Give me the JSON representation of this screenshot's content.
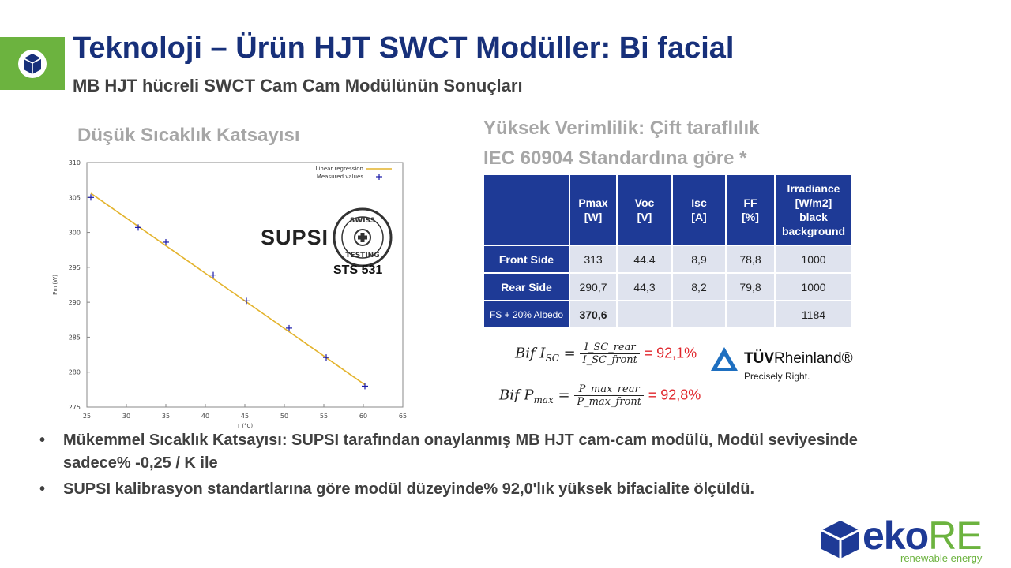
{
  "header": {
    "title": "Teknoloji – Ürün HJT SWCT Modüller: Bi facial",
    "subtitle": "MB HJT hücreli SWCT Cam Cam Modülünün Sonuçları"
  },
  "left": {
    "heading": "Düşük Sıcaklık Katsayısı",
    "supsi_logo": "SUPSI",
    "seal_text": [
      "SWISS",
      "TESTING"
    ],
    "seal_label": "STS 531"
  },
  "chart_data": {
    "type": "scatter",
    "xlabel": "T (°C)",
    "ylabel": "Pm (W)",
    "xlim": [
      25,
      65
    ],
    "ylim": [
      275,
      310
    ],
    "xticks": [
      "25",
      "30",
      "35",
      "40",
      "45",
      "50",
      "55",
      "60",
      "65"
    ],
    "yticks": [
      "275",
      "280",
      "285",
      "290",
      "295",
      "300",
      "305",
      "310"
    ],
    "legend_position": "top-right",
    "series": [
      {
        "name": "Measured values",
        "type": "scatter",
        "color": "#1a1aa8",
        "x": [
          25.5,
          31.5,
          35.0,
          41.0,
          45.2,
          50.6,
          55.3,
          60.2
        ],
        "y": [
          305.0,
          300.7,
          298.6,
          293.9,
          290.2,
          286.3,
          282.1,
          278.0
        ]
      },
      {
        "name": "Linear regression",
        "type": "line",
        "color": "#e3b32c",
        "x": [
          25.5,
          60.2
        ],
        "y": [
          305.6,
          278.2
        ]
      }
    ]
  },
  "right": {
    "heading_lines": [
      "Yüksek Verimlilik: Çift taraflılık",
      "IEC 60904 Standardına göre *"
    ],
    "table": {
      "headers": [
        "",
        "Pmax [W]",
        "Voc [V]",
        "Isc [A]",
        "FF [%]",
        "Irradiance [W/m2] black background"
      ],
      "rows": [
        {
          "label": "Front Side",
          "cells": [
            "313",
            "44.4",
            "8,9",
            "78,8",
            "1000"
          ]
        },
        {
          "label": "Rear Side",
          "cells": [
            "290,7",
            "44,3",
            "8,2",
            "79,8",
            "1000"
          ]
        },
        {
          "label": "FS + 20% Albedo",
          "cells": [
            "370,6",
            "",
            "",
            "",
            "1184"
          ]
        }
      ]
    },
    "formula_isc": {
      "lhs": "Bif I",
      "lhs_sub": "SC",
      "num": "I_SC_rear",
      "den": "I_SC_front",
      "value": "= 92,1%"
    },
    "formula_pmax": {
      "lhs": "Bif P",
      "lhs_sub": "max",
      "num": "P_max_rear",
      "den": "P_max_front",
      "value": "= 92,8%"
    },
    "tuv": {
      "brand_bold": "TÜV",
      "brand_light": "Rheinland®",
      "tagline": "Precisely Right."
    }
  },
  "bullets": [
    "Mükemmel Sıcaklık Katsayısı: SUPSI tarafından onaylanmış MB HJT cam-cam modülü, Modül seviyesinde sadece% -0,25 / K ile",
    "SUPSI kalibrasyon standartlarına göre modül düzeyinde% 92,0'lık yüksek bifacialite ölçüldü."
  ],
  "footer": {
    "brand": "eko",
    "brand_accent": "RE",
    "tagline": "renewable energy"
  },
  "colors": {
    "navy": "#17307a",
    "green": "#6cb33f",
    "table_header": "#1e3a96",
    "result_red": "#e0262c"
  }
}
